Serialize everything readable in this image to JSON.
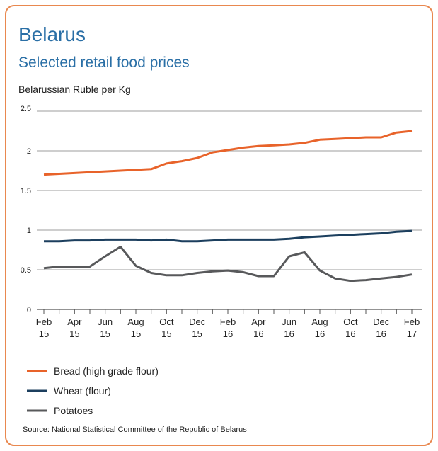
{
  "chart_data": {
    "type": "line",
    "title": "Belarus",
    "subtitle": "Selected retail food prices",
    "ylabel": "Belarussian Ruble per Kg",
    "source": "Source: National Statistical Committee of the Republic of Belarus",
    "categories": [
      "Feb 15",
      null,
      "Apr 15",
      null,
      "Jun 15",
      null,
      "Aug 15",
      null,
      "Oct 15",
      null,
      "Dec 15",
      null,
      "Feb 16",
      null,
      "Apr 16",
      null,
      "Jun 16",
      null,
      "Aug 16",
      null,
      "Oct 16",
      null,
      "Dec 16",
      null,
      "Feb 17"
    ],
    "series": [
      {
        "name": "Bread (high grade flour)",
        "color": "#e8632a",
        "values": [
          1.7,
          1.71,
          1.72,
          1.73,
          1.74,
          1.75,
          1.76,
          1.77,
          1.84,
          1.87,
          1.91,
          1.98,
          2.01,
          2.04,
          2.06,
          2.07,
          2.08,
          2.1,
          2.14,
          2.15,
          2.16,
          2.17,
          2.17,
          2.23,
          2.25
        ]
      },
      {
        "name": "Wheat (flour)",
        "color": "#1c3f5e",
        "values": [
          0.86,
          0.86,
          0.87,
          0.87,
          0.88,
          0.88,
          0.88,
          0.87,
          0.88,
          0.86,
          0.86,
          0.87,
          0.88,
          0.88,
          0.88,
          0.88,
          0.89,
          0.91,
          0.92,
          0.93,
          0.94,
          0.95,
          0.96,
          0.98,
          0.99
        ]
      },
      {
        "name": "Potatoes",
        "color": "#58595b",
        "values": [
          0.52,
          0.54,
          0.54,
          0.54,
          0.67,
          0.79,
          0.55,
          0.46,
          0.43,
          0.43,
          0.46,
          0.48,
          0.49,
          0.47,
          0.42,
          0.42,
          0.67,
          0.72,
          0.49,
          0.39,
          0.36,
          0.37,
          0.39,
          0.41,
          0.44
        ]
      }
    ],
    "ylim": [
      0,
      2.5
    ],
    "yticks": [
      0,
      0.5,
      1,
      1.5,
      2,
      2.5
    ],
    "grid": true
  }
}
